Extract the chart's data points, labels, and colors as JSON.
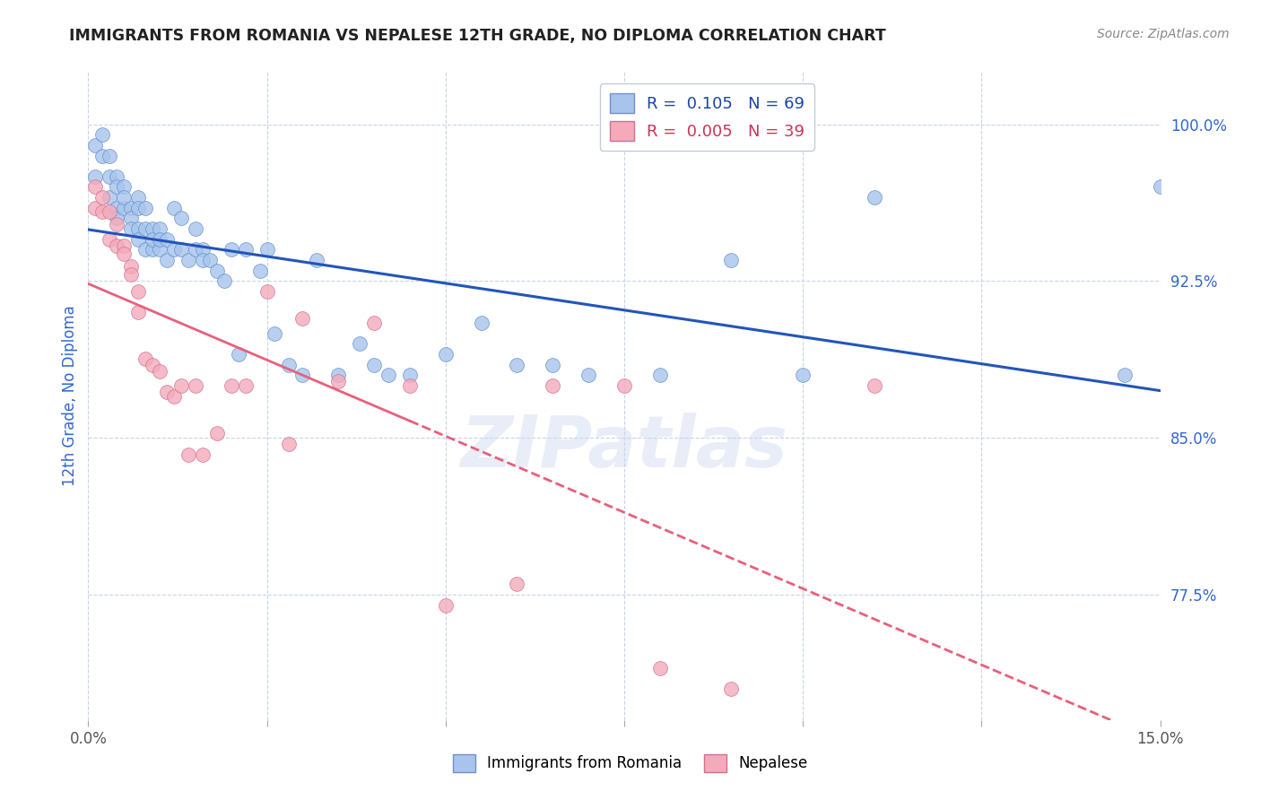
{
  "title": "IMMIGRANTS FROM ROMANIA VS NEPALESE 12TH GRADE, NO DIPLOMA CORRELATION CHART",
  "source": "Source: ZipAtlas.com",
  "ylabel": "12th Grade, No Diploma",
  "xlim": [
    0.0,
    0.15
  ],
  "ylim": [
    0.715,
    1.025
  ],
  "xticks": [
    0.0,
    0.025,
    0.05,
    0.075,
    0.1,
    0.125,
    0.15
  ],
  "xticklabels": [
    "0.0%",
    "",
    "",
    "",
    "",
    "",
    "15.0%"
  ],
  "yticks": [
    0.775,
    0.85,
    0.925,
    1.0
  ],
  "yticklabels": [
    "77.5%",
    "85.0%",
    "92.5%",
    "100.0%"
  ],
  "blue_color": "#a8c4ec",
  "pink_color": "#f4aabb",
  "blue_line_color": "#2255bb",
  "pink_line_color": "#e8607a",
  "legend_R_blue": "0.105",
  "legend_N_blue": "69",
  "legend_R_pink": "0.005",
  "legend_N_pink": "39",
  "blue_x": [
    0.001,
    0.001,
    0.002,
    0.002,
    0.003,
    0.003,
    0.003,
    0.004,
    0.004,
    0.004,
    0.004,
    0.005,
    0.005,
    0.005,
    0.006,
    0.006,
    0.006,
    0.007,
    0.007,
    0.007,
    0.007,
    0.008,
    0.008,
    0.008,
    0.009,
    0.009,
    0.009,
    0.01,
    0.01,
    0.01,
    0.011,
    0.011,
    0.012,
    0.012,
    0.013,
    0.013,
    0.014,
    0.015,
    0.015,
    0.016,
    0.016,
    0.017,
    0.018,
    0.019,
    0.02,
    0.021,
    0.022,
    0.024,
    0.025,
    0.026,
    0.028,
    0.03,
    0.032,
    0.035,
    0.038,
    0.04,
    0.042,
    0.045,
    0.05,
    0.055,
    0.06,
    0.065,
    0.07,
    0.08,
    0.09,
    0.1,
    0.11,
    0.145,
    0.15
  ],
  "blue_y": [
    0.99,
    0.975,
    0.985,
    0.995,
    0.975,
    0.985,
    0.965,
    0.975,
    0.97,
    0.96,
    0.955,
    0.97,
    0.96,
    0.965,
    0.96,
    0.955,
    0.95,
    0.965,
    0.96,
    0.95,
    0.945,
    0.96,
    0.95,
    0.94,
    0.95,
    0.94,
    0.945,
    0.95,
    0.94,
    0.945,
    0.945,
    0.935,
    0.96,
    0.94,
    0.955,
    0.94,
    0.935,
    0.95,
    0.94,
    0.94,
    0.935,
    0.935,
    0.93,
    0.925,
    0.94,
    0.89,
    0.94,
    0.93,
    0.94,
    0.9,
    0.885,
    0.88,
    0.935,
    0.88,
    0.895,
    0.885,
    0.88,
    0.88,
    0.89,
    0.905,
    0.885,
    0.885,
    0.88,
    0.88,
    0.935,
    0.88,
    0.965,
    0.88,
    0.97
  ],
  "pink_x": [
    0.001,
    0.001,
    0.002,
    0.002,
    0.003,
    0.003,
    0.004,
    0.004,
    0.005,
    0.005,
    0.006,
    0.006,
    0.007,
    0.007,
    0.008,
    0.009,
    0.01,
    0.011,
    0.012,
    0.013,
    0.014,
    0.015,
    0.016,
    0.018,
    0.02,
    0.022,
    0.025,
    0.028,
    0.03,
    0.035,
    0.04,
    0.045,
    0.05,
    0.06,
    0.065,
    0.075,
    0.08,
    0.09,
    0.11
  ],
  "pink_y": [
    0.97,
    0.96,
    0.965,
    0.958,
    0.958,
    0.945,
    0.952,
    0.942,
    0.942,
    0.938,
    0.932,
    0.928,
    0.92,
    0.91,
    0.888,
    0.885,
    0.882,
    0.872,
    0.87,
    0.875,
    0.842,
    0.875,
    0.842,
    0.852,
    0.875,
    0.875,
    0.92,
    0.847,
    0.907,
    0.877,
    0.905,
    0.875,
    0.77,
    0.78,
    0.875,
    0.875,
    0.74,
    0.73,
    0.875
  ],
  "watermark": "ZIPatlas",
  "background_color": "#ffffff",
  "grid_color": "#c8d4e8",
  "title_color": "#222222",
  "tick_color_y": "#3366cc",
  "tick_color_x": "#555555"
}
